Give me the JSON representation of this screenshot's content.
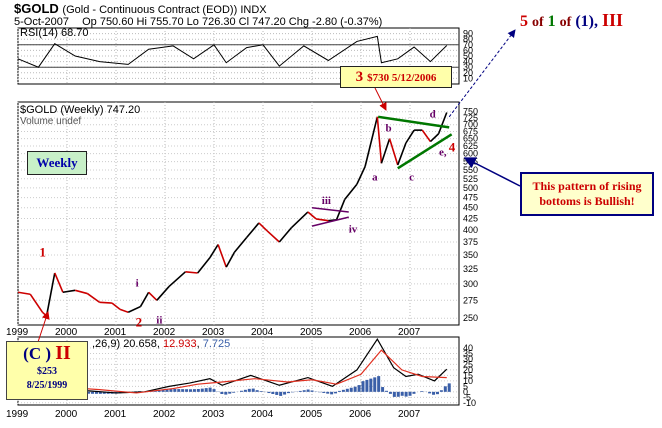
{
  "header": {
    "symbol": "$GOLD",
    "contract": "(Gold - Continuous Contract (EOD)) INDX",
    "date": "5-Oct-2007",
    "quote": "Op 750.60  Hi 755.70  Lo 726.30  Cl 747.20  Chg -2.80 (-0.37%)"
  },
  "rsi_panel": {
    "label": "RSI(14) 68.70",
    "ticks": [
      "90",
      "80",
      "70",
      "60",
      "50",
      "40",
      "30",
      "20",
      "10"
    ]
  },
  "price_panel": {
    "label": "$GOLD (Weekly) 747.20",
    "volume_label": "Volume undef",
    "y_ticks": [
      "750",
      "725",
      "700",
      "675",
      "650",
      "625",
      "600",
      "575",
      "550",
      "525",
      "500",
      "475",
      "450",
      "425",
      "400",
      "375",
      "350",
      "325",
      "300",
      "275",
      "250"
    ],
    "x_ticks": [
      "1999",
      "2000",
      "2001",
      "2002",
      "2003",
      "2004",
      "2005",
      "2006",
      "2007"
    ]
  },
  "macd_panel": {
    "label": "(12,26,9) 20.658, 12.933, 7.725",
    "v1": "20.658",
    "v2": "12.933",
    "v3": "7.725",
    "prefix": ",26,9) ",
    "y_ticks": [
      "40",
      "35",
      "30",
      "25",
      "20",
      "15",
      "10",
      "5",
      "0",
      "-5",
      "-10"
    ],
    "x_ticks": [
      "1999",
      "2000",
      "2001",
      "2002",
      "2003",
      "2004",
      "2005",
      "2006",
      "2007"
    ]
  },
  "annotations": {
    "weekly": "Weekly",
    "wave_label_3": "3",
    "wave_3_detail": "$730  5/12/2006",
    "top_right_5": "5",
    "top_right_of1": "of",
    "top_right_1": "1",
    "top_right_of2": "of",
    "top_right_paren": "(1),",
    "top_right_III": "III",
    "pattern_note": "This pattern of rising bottoms is Bullish!",
    "bottom_label_C": "(C )",
    "bottom_label_II": "II",
    "bottom_price": "$253",
    "bottom_date": "8/25/1999",
    "wave_1": "1",
    "wave_2": "2",
    "wave_i": "i",
    "wave_ii": "ii",
    "wave_iii": "iii",
    "wave_iv": "iv",
    "wave_a": "a",
    "wave_b": "b",
    "wave_c": "c",
    "wave_d": "d",
    "wave_e": "e,",
    "wave_4": "4"
  },
  "colors": {
    "price_up": "#000000",
    "price_down": "#cc0000",
    "rsi_line": "#000000",
    "macd_line": "#000000",
    "signal_line": "#e03020",
    "histogram": "#3a5fa8",
    "wave_red": "#cc0000",
    "wave_purple": "#660066",
    "trendline": "#007700",
    "label_box": "#ffffaa",
    "weekly_box": "#c8f0c8",
    "note_box": "#ffffcc",
    "arrow_blue": "#000080"
  },
  "chart_data": {
    "type": "line",
    "series": [
      {
        "values": [
          [
            "1999-01",
            287
          ],
          [
            "1999-04",
            284
          ],
          [
            "1999-07",
            258
          ],
          [
            "1999-08",
            253
          ],
          [
            "1999-10",
            318
          ],
          [
            "1999-12",
            287
          ],
          [
            "2000-03",
            290
          ],
          [
            "2000-06",
            285
          ],
          [
            "2000-09",
            272
          ],
          [
            "2000-12",
            271
          ],
          [
            "2001-02",
            262
          ],
          [
            "2001-04",
            258
          ],
          [
            "2001-07",
            266
          ],
          [
            "2001-09",
            287
          ],
          [
            "2001-11",
            275
          ],
          [
            "2002-02",
            296
          ],
          [
            "2002-06",
            320
          ],
          [
            "2002-09",
            318
          ],
          [
            "2002-12",
            345
          ],
          [
            "2003-02",
            370
          ],
          [
            "2003-04",
            328
          ],
          [
            "2003-06",
            355
          ],
          [
            "2003-09",
            384
          ],
          [
            "2003-12",
            415
          ],
          [
            "2004-02",
            398
          ],
          [
            "2004-05",
            375
          ],
          [
            "2004-08",
            405
          ],
          [
            "2004-12",
            440
          ],
          [
            "2005-02",
            424
          ],
          [
            "2005-05",
            420
          ],
          [
            "2005-07",
            422
          ],
          [
            "2005-09",
            470
          ],
          [
            "2005-12",
            510
          ],
          [
            "2006-02",
            560
          ],
          [
            "2006-05",
            730
          ],
          [
            "2006-06",
            570
          ],
          [
            "2006-08",
            650
          ],
          [
            "2006-10",
            565
          ],
          [
            "2006-12",
            635
          ],
          [
            "2007-02",
            680
          ],
          [
            "2007-04",
            680
          ],
          [
            "2007-06",
            640
          ],
          [
            "2007-08",
            667
          ],
          [
            "2007-10",
            747
          ]
        ]
      }
    ],
    "rsi": [
      [
        "1999-01",
        45
      ],
      [
        "1999-06",
        30
      ],
      [
        "1999-10",
        72
      ],
      [
        "2000-03",
        50
      ],
      [
        "2000-09",
        40
      ],
      [
        "2001-04",
        35
      ],
      [
        "2001-09",
        62
      ],
      [
        "2002-03",
        68
      ],
      [
        "2002-08",
        45
      ],
      [
        "2003-01",
        70
      ],
      [
        "2003-04",
        38
      ],
      [
        "2003-09",
        65
      ],
      [
        "2004-01",
        70
      ],
      [
        "2004-05",
        32
      ],
      [
        "2004-11",
        68
      ],
      [
        "2005-05",
        42
      ],
      [
        "2005-12",
        76
      ],
      [
        "2006-05",
        85
      ],
      [
        "2006-06",
        38
      ],
      [
        "2006-10",
        45
      ],
      [
        "2007-02",
        66
      ],
      [
        "2007-06",
        40
      ],
      [
        "2007-10",
        68.7
      ]
    ],
    "macd": [
      [
        "1999-01",
        -2
      ],
      [
        "1999-08",
        -6
      ],
      [
        "1999-11",
        6
      ],
      [
        "2000-06",
        1
      ],
      [
        "2001-01",
        -1
      ],
      [
        "2001-08",
        0
      ],
      [
        "2002-02",
        5
      ],
      [
        "2002-07",
        8
      ],
      [
        "2002-12",
        12
      ],
      [
        "2003-03",
        6
      ],
      [
        "2003-10",
        15
      ],
      [
        "2004-05",
        6
      ],
      [
        "2004-12",
        13
      ],
      [
        "2005-06",
        5
      ],
      [
        "2005-12",
        20
      ],
      [
        "2006-05",
        48
      ],
      [
        "2006-09",
        22
      ],
      [
        "2006-12",
        14
      ],
      [
        "2007-03",
        16
      ],
      [
        "2007-07",
        10
      ],
      [
        "2007-10",
        20.658
      ]
    ],
    "macd_signal": [
      [
        "1999-01",
        -1
      ],
      [
        "1999-09",
        -3
      ],
      [
        "2000-01",
        4
      ],
      [
        "2000-09",
        2
      ],
      [
        "2001-06",
        -1
      ],
      [
        "2002-03",
        3
      ],
      [
        "2002-09",
        7
      ],
      [
        "2003-03",
        9
      ],
      [
        "2003-11",
        12
      ],
      [
        "2004-07",
        9
      ],
      [
        "2005-01",
        11
      ],
      [
        "2005-07",
        7
      ],
      [
        "2006-01",
        16
      ],
      [
        "2006-06",
        38
      ],
      [
        "2006-11",
        20
      ],
      [
        "2007-04",
        14
      ],
      [
        "2007-10",
        12.933
      ]
    ],
    "xlim": [
      "1999-01",
      "2007-12"
    ],
    "ylim": [
      250,
      760
    ],
    "yscale": "log",
    "grid": true
  }
}
